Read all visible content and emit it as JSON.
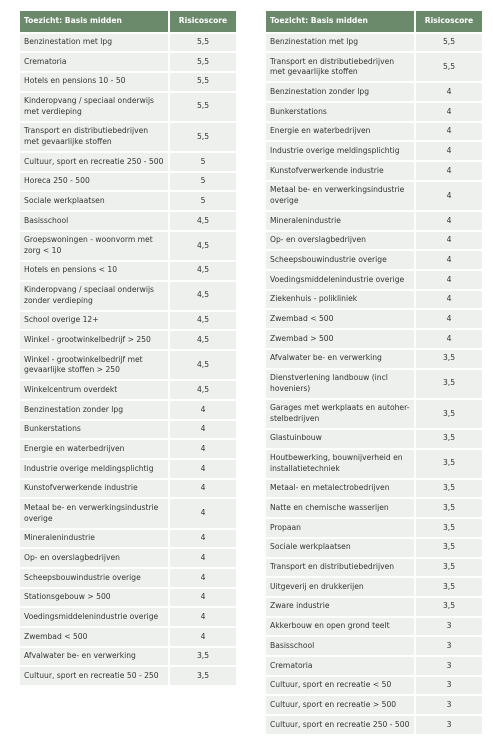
{
  "tables": [
    {
      "header": [
        "Toezicht: Basis midden",
        "Risicoscore"
      ],
      "rows": [
        [
          "Benzinestation met lpg",
          "5,5"
        ],
        [
          "Crematoria",
          "5,5"
        ],
        [
          "Hotels en pensions 10 - 50",
          "5,5"
        ],
        [
          "Kinderopvang / speciaal onderwijs met verdieping",
          "5,5"
        ],
        [
          "Transport en distributiebedrijven met gevaarlijke stoffen",
          "5,5"
        ],
        [
          "Cultuur, sport en recreatie 250 - 500",
          "5"
        ],
        [
          "Horeca 250 - 500",
          "5"
        ],
        [
          "Sociale werkplaatsen",
          "5"
        ],
        [
          "Basisschool",
          "4,5"
        ],
        [
          "Groepswoningen - woonvorm met zorg < 10",
          "4,5"
        ],
        [
          "Hotels en pensions < 10",
          "4,5"
        ],
        [
          "Kinderopvang / speciaal onderwijs zonder verdieping",
          "4,5"
        ],
        [
          "School overige 12+",
          "4,5"
        ],
        [
          "Winkel - grootwinkelbedrijf > 250",
          "4,5"
        ],
        [
          "Winkel - grootwinkelbedrijf met gevaarlijke stoffen > 250",
          "4,5"
        ],
        [
          "Winkelcentrum overdekt",
          "4,5"
        ],
        [
          "Benzinestation zonder lpg",
          "4"
        ],
        [
          "Bunkerstations",
          "4"
        ],
        [
          "Energie en waterbedrijven",
          "4"
        ],
        [
          "Industrie overige meldingsplichtig",
          "4"
        ],
        [
          "Kunstofverwerkende industrie",
          "4"
        ],
        [
          "Metaal be- en verwerkingsindustrie overige",
          "4"
        ],
        [
          "Mineralenindustrie",
          "4"
        ],
        [
          "Op- en overslagbedrijven",
          "4"
        ],
        [
          "Scheepsbouwindustrie overige",
          "4"
        ],
        [
          "Stationsgebouw > 500",
          "4"
        ],
        [
          "Voedingsmiddelenindustrie overige",
          "4"
        ],
        [
          "Zwembad < 500",
          "4"
        ],
        [
          "Afvalwater be- en verwerking",
          "3,5"
        ],
        [
          "Cultuur, sport en recreatie 50 - 250",
          "3,5"
        ]
      ]
    },
    {
      "header": [
        "Toezicht: Basis midden",
        "Risicoscore"
      ],
      "rows": [
        [
          "Benzinestation met lpg",
          "5,5"
        ],
        [
          "Transport en distributiebedrijven met gevaarlijke stoffen",
          "5,5"
        ],
        [
          "Benzinestation zonder lpg",
          "4"
        ],
        [
          "Bunkerstations",
          "4"
        ],
        [
          "Energie en waterbedrijven",
          "4"
        ],
        [
          "Industrie overige meldingsplichtig",
          "4"
        ],
        [
          "Kunstofverwerkende industrie",
          "4"
        ],
        [
          "Metaal be- en verwerkingsindustrie overige",
          "4"
        ],
        [
          "Mineralenindustrie",
          "4"
        ],
        [
          "Op- en overslagbedrijven",
          "4"
        ],
        [
          "Scheepsbouwindustrie overige",
          "4"
        ],
        [
          "Voedingsmiddelenindustrie overige",
          "4"
        ],
        [
          "Ziekenhuis - polikliniek",
          "4"
        ],
        [
          "Zwembad < 500",
          "4"
        ],
        [
          "Zwembad > 500",
          "4"
        ],
        [
          "Afvalwater be- en verwerking",
          "3,5"
        ],
        [
          "Dienstverlening landbouw (incl hoveniers)",
          "3,5"
        ],
        [
          "Garages met werkplaats en autoher-stelbedrijven",
          "3,5"
        ],
        [
          "Glastuinbouw",
          "3,5"
        ],
        [
          "Houtbewerking, bouwnijverheid en installatietechniek",
          "3,5"
        ],
        [
          "Metaal- en metalectrobedrijven",
          "3,5"
        ],
        [
          "Natte en chemische wasserijen",
          "3,5"
        ],
        [
          "Propaan",
          "3,5"
        ],
        [
          "Sociale werkplaatsen",
          "3,5"
        ],
        [
          "Transport en distributiebedrijven",
          "3,5"
        ],
        [
          "Uitgeverij en drukkerijen",
          "3,5"
        ],
        [
          "Zware industrie",
          "3,5"
        ],
        [
          "Akkerbouw en open grond teelt",
          "3"
        ],
        [
          "Basisschool",
          "3"
        ],
        [
          "Crematoria",
          "3"
        ],
        [
          "Cultuur, sport en recreatie < 50",
          "3"
        ],
        [
          "Cultuur, sport en recreatie > 500",
          "3"
        ],
        [
          "Cultuur, sport en recreatie 250 - 500",
          "3"
        ]
      ]
    }
  ]
}
